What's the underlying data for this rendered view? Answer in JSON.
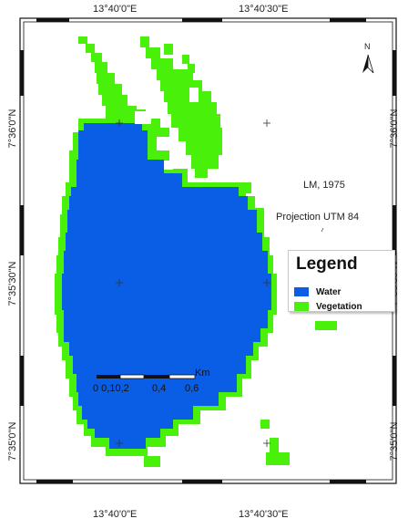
{
  "map": {
    "coords": {
      "top_left": "13°40'0\"E",
      "top_right": "13°40'30\"E",
      "bottom_left": "13°40'0\"E",
      "bottom_right": "13°40'30\"E",
      "left_1": "7°36'0\"N",
      "left_2": "7°35'30\"N",
      "left_3": "7°35'0\"N",
      "right_1": "7°36'0\"N",
      "right_2": "7°35'30\"N",
      "right_3": "7°35'0\"N"
    },
    "info_year": "LM, 1975",
    "info_projection": "Projection UTM 84",
    "north_label": "N",
    "legend": {
      "title": "Legend",
      "items": [
        {
          "label": "Water",
          "color": "#0a5ee6"
        },
        {
          "label": "Vegetation",
          "color": "#48f00a"
        }
      ]
    },
    "scale": {
      "unit": "Km",
      "ticks": "0 0,10,2",
      "tick_04": "0,4",
      "tick_06": "0,6"
    },
    "colors": {
      "water": "#0a5ee6",
      "vegetation": "#48f00a",
      "frame": "#111111"
    }
  }
}
